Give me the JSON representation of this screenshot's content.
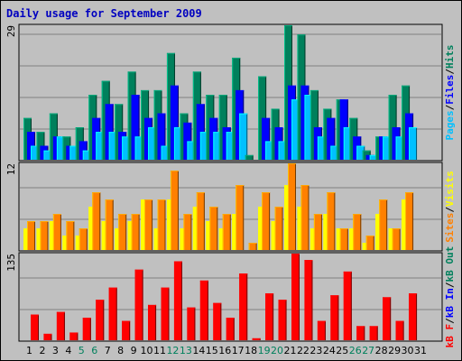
{
  "chart_data": [
    {
      "type": "bar",
      "title": "Daily usage for September 2009",
      "ymax_label": "29",
      "categories": [
        "1",
        "2",
        "3",
        "4",
        "5",
        "6",
        "7",
        "8",
        "9",
        "10",
        "11",
        "12",
        "13",
        "14",
        "15",
        "16",
        "17",
        "18",
        "19",
        "20",
        "21",
        "22",
        "23",
        "24",
        "25",
        "26",
        "27",
        "28",
        "29",
        "30",
        "31"
      ],
      "weekend_days": [
        "5",
        "6",
        "12",
        "13",
        "19",
        "20",
        "26",
        "27"
      ],
      "series": [
        {
          "name": "Hits",
          "color": "#00805c",
          "values": [
            9,
            6,
            10,
            5,
            7,
            14,
            17,
            12,
            19,
            15,
            15,
            23,
            10,
            19,
            14,
            14,
            22,
            1,
            18,
            11,
            29,
            27,
            15,
            11,
            13,
            9,
            2,
            5,
            14,
            16,
            0
          ]
        },
        {
          "name": "Files",
          "color": "#0000ff",
          "values": [
            6,
            3,
            5,
            3,
            4,
            9,
            12,
            6,
            14,
            9,
            10,
            16,
            8,
            12,
            9,
            7,
            15,
            0,
            9,
            7,
            16,
            16,
            7,
            9,
            13,
            5,
            1,
            5,
            7,
            10,
            0
          ]
        },
        {
          "name": "Pages",
          "color": "#00c0ff",
          "values": [
            3,
            2,
            5,
            3,
            2,
            6,
            6,
            5,
            5,
            7,
            3,
            7,
            4,
            6,
            6,
            6,
            10,
            0,
            4,
            4,
            13,
            14,
            5,
            3,
            7,
            3,
            1,
            5,
            5,
            7,
            0
          ]
        }
      ],
      "legend_order": [
        "Pages",
        "Files",
        "Hits"
      ],
      "ylim": [
        0,
        29
      ]
    },
    {
      "type": "bar",
      "ymax_label": "12",
      "categories": [
        "1",
        "2",
        "3",
        "4",
        "5",
        "6",
        "7",
        "8",
        "9",
        "10",
        "11",
        "12",
        "13",
        "14",
        "15",
        "16",
        "17",
        "18",
        "19",
        "20",
        "21",
        "22",
        "23",
        "24",
        "25",
        "26",
        "27",
        "28",
        "29",
        "30",
        "31"
      ],
      "series": [
        {
          "name": "Visits",
          "color": "#ffff00",
          "values": [
            3,
            3,
            4,
            2,
            2,
            6,
            4,
            3,
            4,
            7,
            3,
            7,
            3,
            6,
            4,
            3,
            5,
            0,
            6,
            4,
            9,
            6,
            3,
            5,
            3,
            3,
            1,
            5,
            3,
            7,
            0
          ]
        },
        {
          "name": "Sites",
          "color": "#ff8000",
          "values": [
            4,
            4,
            5,
            4,
            3,
            8,
            7,
            5,
            5,
            7,
            7,
            11,
            5,
            8,
            6,
            5,
            9,
            1,
            8,
            6,
            12,
            9,
            5,
            8,
            3,
            5,
            2,
            7,
            3,
            8,
            0
          ]
        }
      ],
      "legend_order": [
        "Sites",
        "Visits"
      ],
      "ylim": [
        0,
        12
      ]
    },
    {
      "type": "bar",
      "ymax_label": "135",
      "categories": [
        "1",
        "2",
        "3",
        "4",
        "5",
        "6",
        "7",
        "8",
        "9",
        "10",
        "11",
        "12",
        "13",
        "14",
        "15",
        "16",
        "17",
        "18",
        "19",
        "20",
        "21",
        "22",
        "23",
        "24",
        "25",
        "26",
        "27",
        "28",
        "29",
        "30",
        "31"
      ],
      "series": [
        {
          "name": "kB Out",
          "color": "#00805c",
          "values": [
            0,
            0,
            0,
            0,
            0,
            0,
            0,
            0,
            0,
            0,
            0,
            0,
            0,
            0,
            0,
            0,
            0,
            0,
            0,
            0,
            0,
            0,
            0,
            0,
            0,
            0,
            0,
            0,
            0,
            0,
            0
          ]
        },
        {
          "name": "kB In",
          "color": "#0000ff",
          "values": [
            0,
            0,
            0,
            0,
            0,
            0,
            0,
            0,
            0,
            0,
            0,
            0,
            0,
            0,
            0,
            0,
            0,
            0,
            0,
            0,
            0,
            0,
            0,
            0,
            0,
            0,
            0,
            0,
            0,
            0,
            0
          ]
        },
        {
          "name": "kB F",
          "color": "#ff0000",
          "values": [
            40,
            10,
            44,
            12,
            35,
            63,
            82,
            30,
            110,
            55,
            82,
            123,
            51,
            93,
            58,
            35,
            104,
            3,
            73,
            63,
            135,
            125,
            30,
            70,
            107,
            22,
            22,
            67,
            30,
            73,
            0
          ]
        }
      ],
      "legend_order": [
        "kB F",
        "kB In",
        "kB Out"
      ],
      "ylim": [
        0,
        135
      ]
    }
  ],
  "colors": {
    "background": "#c0c0c0",
    "title": "#0000c0",
    "weekday_label": "#000000",
    "weekend_label": "#00805c"
  }
}
